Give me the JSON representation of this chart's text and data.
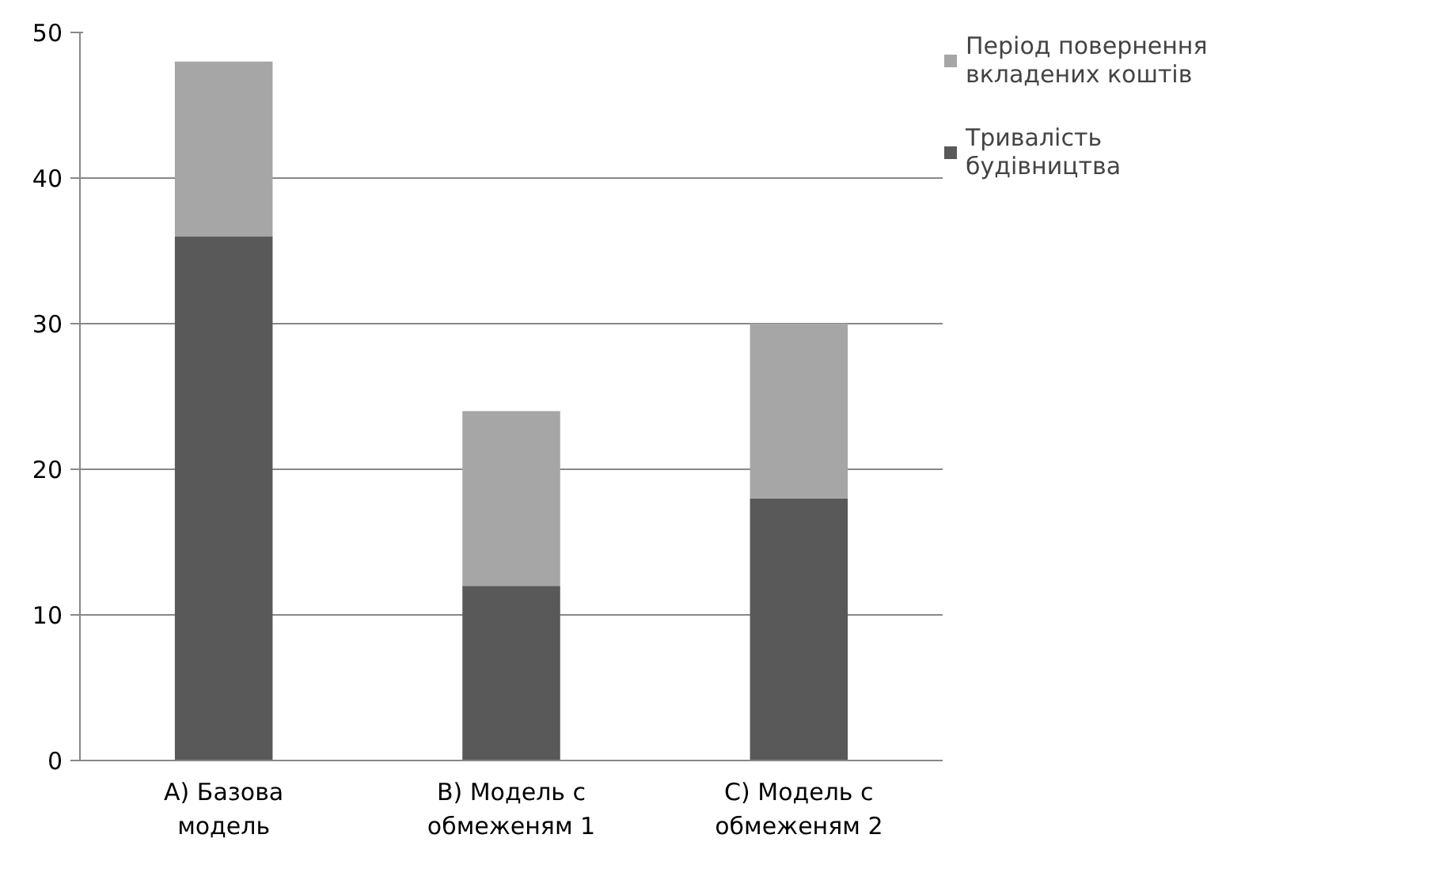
{
  "chart_data": {
    "type": "bar",
    "stacked": true,
    "categories": [
      "А) Базова модель",
      "В) Модель с обмеженям 1",
      "С) Модель с обмеженям 2"
    ],
    "series": [
      {
        "name": "Тривалість будівництва",
        "color": "#595959",
        "values": [
          36,
          12,
          18
        ]
      },
      {
        "name": "Період повернення вкладених коштів",
        "color": "#a6a6a6",
        "values": [
          12,
          12,
          12
        ]
      }
    ],
    "ylim": [
      0,
      50
    ],
    "yticks": [
      0,
      10,
      20,
      30,
      40,
      50
    ],
    "grid": "y",
    "legend": "right"
  }
}
